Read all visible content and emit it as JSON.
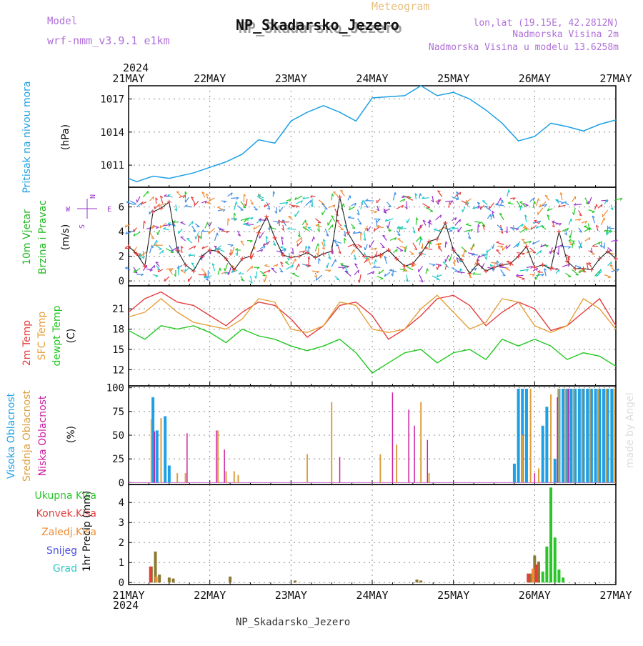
{
  "header": {
    "model_label": "Model",
    "model_name": "wrf-nmm_v3.9.1 e1km",
    "product": "Meteogram",
    "station": "NP_Skadarsko_Jezero",
    "lonlat": "lon,lat (19.15E, 42.2812N)",
    "elevation": "Nadmorska Visina 2m",
    "model_elevation": "Nadmorska Visina u modelu 13.6258m",
    "footer_station": "NP_Skadarsko_Jezero",
    "watermark": "made by Angel"
  },
  "colors": {
    "pressure": "#1ea0e6",
    "wind_label": "#22b822",
    "wind_dir_label": "#9933cc",
    "temp2m": "#e63c3c",
    "tempsfc": "#e6a03c",
    "dewpt": "#22c822",
    "cloud_high": "#1ea0e6",
    "cloud_mid": "#dca03c",
    "cloud_low": "#cc1ea0",
    "precip_total": "#2bc52b",
    "precip_conv": "#e63c3c",
    "precip_grid": "#f08c32",
    "snow": "#5050e6",
    "hail": "#32c8c8",
    "precip_bar": "#8c7a32"
  },
  "chart_data": [
    {
      "type": "line",
      "name": "pressure",
      "ylabel_parts": [
        "Pritisak na nivou mora",
        "(hPa)"
      ],
      "x_ticks": [
        "21MAY",
        "22MAY",
        "23MAY",
        "24MAY",
        "25MAY",
        "26MAY",
        "27MAY"
      ],
      "x_year": "2024",
      "ylim": [
        1009,
        1018.2
      ],
      "yticks": [
        1011,
        1014,
        1017
      ],
      "grid": true,
      "series": [
        {
          "name": "",
          "x_days": [
            0,
            0.1,
            0.3,
            0.5,
            0.8,
            1.0,
            1.2,
            1.4,
            1.6,
            1.8,
            2.0,
            2.2,
            2.4,
            2.6,
            2.8,
            3.0,
            3.2,
            3.4,
            3.6,
            3.8,
            4.0,
            4.2,
            4.4,
            4.6,
            4.8,
            5.0,
            5.2,
            5.4,
            5.6,
            5.8,
            6.0
          ],
          "y": [
            1009.8,
            1009.5,
            1010.0,
            1009.8,
            1010.3,
            1010.8,
            1011.3,
            1012.0,
            1013.3,
            1013.0,
            1015.0,
            1015.8,
            1016.4,
            1015.8,
            1015.0,
            1017.1,
            1017.2,
            1017.3,
            1018.2,
            1017.3,
            1017.6,
            1017.0,
            1016.0,
            1014.8,
            1013.2,
            1013.6,
            1014.8,
            1014.5,
            1014.1,
            1014.7,
            1015.1
          ]
        }
      ]
    },
    {
      "type": "line",
      "name": "wind",
      "ylabel_parts": [
        "10m Vjetar",
        "Brzina i Pravac",
        "(m/s)"
      ],
      "compass": {
        "n": "N",
        "s": "S",
        "e": "E",
        "w": "W"
      },
      "ylim": [
        -0.4,
        7.6
      ],
      "yticks": [
        0,
        2,
        4,
        6
      ],
      "grid": true,
      "series": [
        {
          "name": "speed",
          "x_days": [
            0,
            0.1,
            0.2,
            0.3,
            0.4,
            0.5,
            0.6,
            0.7,
            0.8,
            0.9,
            1.0,
            1.1,
            1.2,
            1.3,
            1.4,
            1.5,
            1.6,
            1.7,
            1.8,
            1.9,
            2.0,
            2.1,
            2.2,
            2.3,
            2.4,
            2.5,
            2.6,
            2.7,
            2.8,
            2.9,
            3.0,
            3.1,
            3.2,
            3.3,
            3.4,
            3.5,
            3.6,
            3.7,
            3.8,
            3.9,
            4.0,
            4.1,
            4.2,
            4.3,
            4.4,
            4.5,
            4.6,
            4.7,
            4.8,
            4.9,
            5.0,
            5.1,
            5.2,
            5.3,
            5.4,
            5.5,
            5.6,
            5.7,
            5.8,
            5.9,
            6.0
          ],
          "y": [
            2.8,
            2.2,
            1.2,
            5.6,
            5.9,
            6.4,
            2.5,
            1.3,
            0.8,
            2.0,
            2.5,
            2.4,
            1.8,
            0.9,
            1.8,
            2.0,
            3.9,
            5.2,
            3.5,
            2.1,
            1.9,
            2.0,
            2.3,
            1.9,
            2.2,
            2.4,
            6.8,
            3.9,
            2.8,
            2.0,
            1.9,
            2.1,
            2.5,
            1.8,
            1.2,
            1.4,
            2.2,
            3.2,
            3.4,
            4.7,
            2.5,
            1.7,
            0.6,
            1.4,
            0.8,
            1.1,
            1.3,
            1.4,
            2.0,
            2.8,
            1.1,
            1.3,
            1.0,
            4.0,
            1.6,
            1.0,
            1.0,
            0.9,
            1.8,
            2.4,
            1.8
          ]
        }
      ]
    },
    {
      "type": "line",
      "name": "temperature",
      "ylabel_parts": [
        "2m Temp",
        "SFC Temp",
        "dewpt Temp",
        "(C)"
      ],
      "ylim": [
        9.6,
        24.4
      ],
      "yticks": [
        12,
        15,
        18,
        21
      ],
      "grid": true,
      "series": [
        {
          "name": "2m Temp",
          "x_days": [
            0,
            0.2,
            0.4,
            0.6,
            0.8,
            1.0,
            1.2,
            1.4,
            1.6,
            1.8,
            2.0,
            2.2,
            2.4,
            2.6,
            2.8,
            3.0,
            3.2,
            3.4,
            3.6,
            3.8,
            4.0,
            4.2,
            4.4,
            4.6,
            4.8,
            5.0,
            5.2,
            5.4,
            5.6,
            5.8,
            6.0
          ],
          "y": [
            20.5,
            22.5,
            23.5,
            22.0,
            21.5,
            20.0,
            18.5,
            20.5,
            22.0,
            21.5,
            19.5,
            16.8,
            18.5,
            21.5,
            22.0,
            20.0,
            16.5,
            18.0,
            20.0,
            22.5,
            23.0,
            21.5,
            18.5,
            20.5,
            22.0,
            21.0,
            17.8,
            18.5,
            20.5,
            22.5,
            18.5
          ]
        },
        {
          "name": "SFC Temp",
          "x_days": [
            0,
            0.2,
            0.4,
            0.6,
            0.8,
            1.0,
            1.2,
            1.4,
            1.6,
            1.8,
            2.0,
            2.2,
            2.4,
            2.6,
            2.8,
            3.0,
            3.2,
            3.4,
            3.6,
            3.8,
            4.0,
            4.2,
            4.4,
            4.6,
            4.8,
            5.0,
            5.2,
            5.4,
            5.6,
            5.8,
            6.0
          ],
          "y": [
            19.8,
            20.5,
            22.5,
            20.5,
            19.0,
            18.5,
            18.0,
            19.5,
            22.5,
            22.0,
            18.0,
            17.5,
            18.5,
            22.0,
            21.5,
            18.0,
            17.5,
            18.0,
            21.0,
            23.0,
            20.5,
            18.0,
            19.0,
            22.5,
            22.0,
            18.5,
            17.5,
            18.5,
            22.5,
            21.0,
            18.0
          ]
        },
        {
          "name": "dewpt Temp",
          "x_days": [
            0,
            0.2,
            0.4,
            0.6,
            0.8,
            1.0,
            1.2,
            1.4,
            1.6,
            1.8,
            2.0,
            2.2,
            2.4,
            2.6,
            2.8,
            3.0,
            3.2,
            3.4,
            3.6,
            3.8,
            4.0,
            4.2,
            4.4,
            4.6,
            4.8,
            5.0,
            5.2,
            5.4,
            5.6,
            5.8,
            6.0
          ],
          "y": [
            17.8,
            16.5,
            18.5,
            18.0,
            18.5,
            17.5,
            16.0,
            18.0,
            17.0,
            16.5,
            15.5,
            14.8,
            15.5,
            16.5,
            14.5,
            11.5,
            13.0,
            14.5,
            15.0,
            13.0,
            14.5,
            15.0,
            13.5,
            16.5,
            15.5,
            16.5,
            15.5,
            13.5,
            14.5,
            14.0,
            12.5
          ]
        }
      ]
    },
    {
      "type": "bar",
      "name": "cloud",
      "ylabel_parts": [
        "Visoka Oblacnost",
        "Srednja Oblacnost",
        "Niska Oblacnost",
        "(%)"
      ],
      "ylim": [
        -2,
        102
      ],
      "yticks": [
        0,
        25,
        50,
        75,
        100
      ],
      "grid": true,
      "high": {
        "name": "Visoka Oblacnost",
        "x_days": [
          0.3,
          0.35,
          0.45,
          0.5,
          4.75,
          4.8,
          4.85,
          4.9,
          5.1,
          5.15,
          5.25,
          5.3,
          5.35,
          5.4,
          5.45,
          5.5,
          5.55,
          5.6,
          5.65,
          5.7,
          5.75,
          5.8,
          5.85,
          5.9,
          5.95
        ],
        "values": [
          90,
          55,
          70,
          18,
          20,
          99,
          99,
          99,
          60,
          80,
          25,
          99,
          99,
          99,
          99,
          99,
          99,
          99,
          99,
          99,
          99,
          99,
          99,
          99,
          99
        ]
      },
      "mid": {
        "name": "Srednja Oblacnost",
        "x_days": [
          0.28,
          0.4,
          0.6,
          0.7,
          1.1,
          1.2,
          1.3,
          1.35,
          2.2,
          2.5,
          3.1,
          3.3,
          3.6,
          3.7,
          4.85,
          4.95,
          5.05,
          5.2,
          5.3,
          5.38,
          5.48,
          5.58,
          5.68,
          5.78,
          5.88,
          5.98
        ],
        "values": [
          67,
          68,
          10,
          10,
          55,
          12,
          12,
          8,
          30,
          85,
          30,
          40,
          85,
          10,
          50,
          99,
          15,
          93,
          99,
          99,
          99,
          99,
          99,
          99,
          99,
          99
        ]
      },
      "low": {
        "name": "Niska Oblacnost",
        "x_days": [
          0.32,
          0.72,
          1.08,
          1.18,
          2.6,
          3.25,
          3.45,
          3.52,
          3.68,
          5.0,
          5.28,
          5.42
        ],
        "values": [
          54,
          52,
          55,
          35,
          27,
          95,
          77,
          60,
          45,
          10,
          90,
          99
        ]
      }
    },
    {
      "type": "bar",
      "name": "precipitation",
      "ylabel_parts": [
        "1hr Precip (mm)"
      ],
      "legend": [
        "Ukupna Kisa",
        "Konvek.Kisa",
        "Zaledj.Kisa",
        "Snijeg",
        "Grad"
      ],
      "ylim": [
        -0.1,
        4.9
      ],
      "yticks": [
        0,
        1,
        2,
        3,
        4
      ],
      "grid": true,
      "series": [
        {
          "name": "Ukupna Kisa",
          "x_days": [
            0.28,
            0.33,
            0.38,
            0.5,
            0.55,
            1.25,
            2.05,
            3.55,
            3.6,
            4.95,
            5.0,
            5.05,
            5.1,
            5.15,
            5.2,
            5.25,
            5.3,
            5.35
          ],
          "values": [
            0.8,
            1.55,
            0.4,
            0.25,
            0.2,
            0.3,
            0.1,
            0.15,
            0.1,
            0.45,
            1.35,
            1.05,
            0.55,
            1.8,
            4.75,
            2.25,
            0.65,
            0.25
          ]
        },
        {
          "name": "Konvek.Kisa",
          "x_days": [
            0.27,
            4.92,
            5.02
          ],
          "values": [
            0.8,
            0.45,
            0.9
          ]
        },
        {
          "name": "Zaledj.Kisa",
          "x_days": [
            0.34,
            4.98
          ],
          "values": [
            0.3,
            0.7
          ]
        }
      ]
    }
  ]
}
